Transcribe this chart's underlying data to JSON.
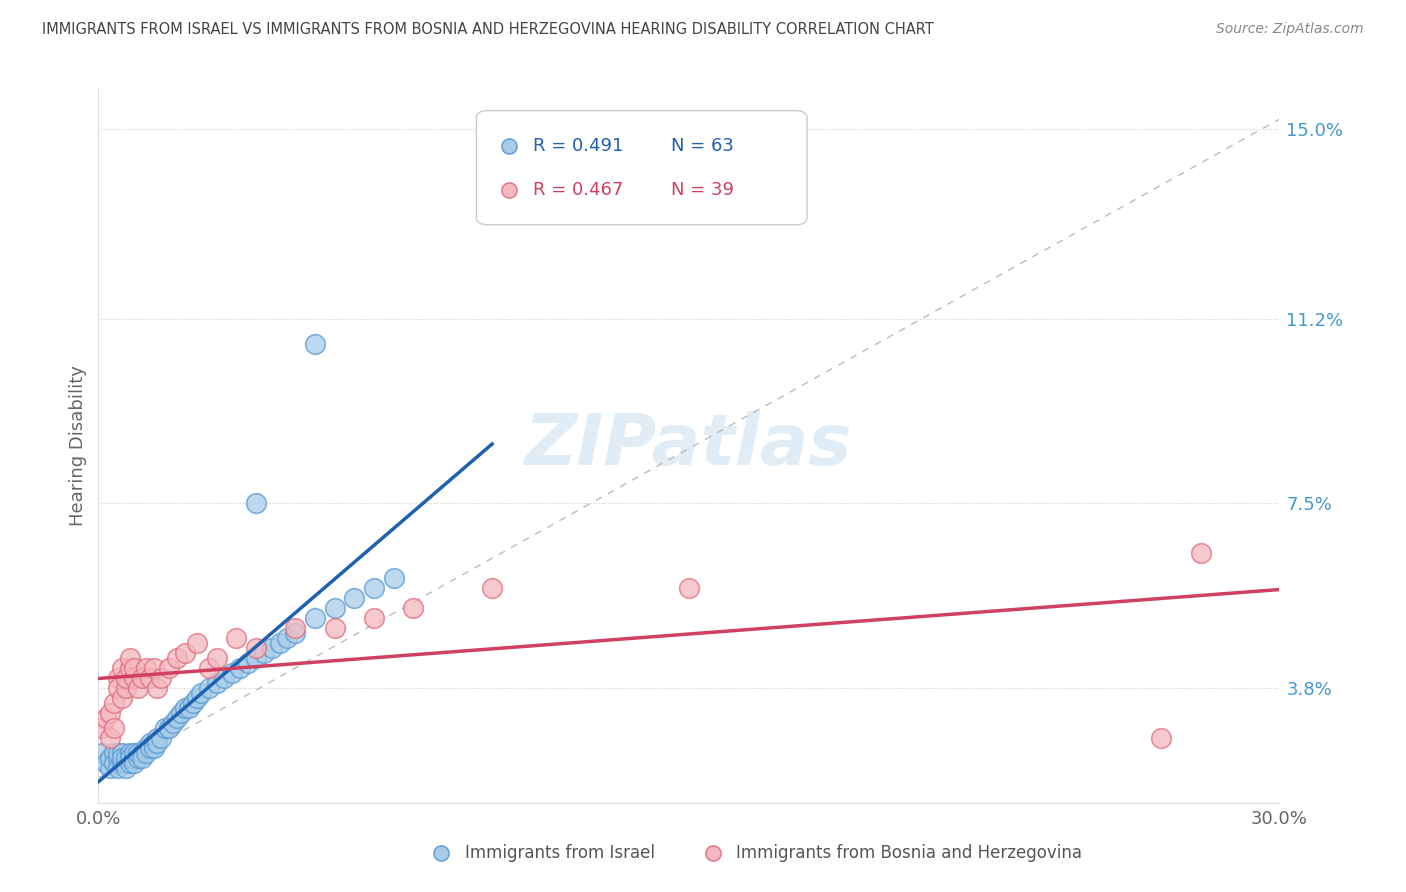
{
  "title": "IMMIGRANTS FROM ISRAEL VS IMMIGRANTS FROM BOSNIA AND HERZEGOVINA HEARING DISABILITY CORRELATION CHART",
  "source": "Source: ZipAtlas.com",
  "ylabel": "Hearing Disability",
  "xlim": [
    0.0,
    0.3
  ],
  "ylim": [
    0.015,
    0.158
  ],
  "yticks_right": [
    0.038,
    0.075,
    0.112,
    0.15
  ],
  "yticklabels_right": [
    "3.8%",
    "7.5%",
    "11.2%",
    "15.0%"
  ],
  "legend_r1": "R = 0.491",
  "legend_n1": "N = 63",
  "legend_r2": "R = 0.467",
  "legend_n2": "N = 39",
  "legend_label1": "Immigrants from Israel",
  "legend_label2": "Immigrants from Bosnia and Herzegovina",
  "blue_color": "#a8cce8",
  "pink_color": "#f4b8c0",
  "blue_edge_color": "#5b9bd5",
  "pink_edge_color": "#e07080",
  "blue_line_color": "#2060b0",
  "pink_line_color": "#d04060",
  "watermark": "ZIPatlas",
  "israel_scatter_x": [
    0.001,
    0.002,
    0.003,
    0.003,
    0.004,
    0.004,
    0.005,
    0.005,
    0.005,
    0.006,
    0.006,
    0.006,
    0.007,
    0.007,
    0.007,
    0.008,
    0.008,
    0.008,
    0.009,
    0.009,
    0.009,
    0.01,
    0.01,
    0.011,
    0.011,
    0.012,
    0.012,
    0.013,
    0.013,
    0.014,
    0.014,
    0.015,
    0.015,
    0.016,
    0.017,
    0.018,
    0.019,
    0.02,
    0.021,
    0.022,
    0.023,
    0.024,
    0.025,
    0.026,
    0.028,
    0.03,
    0.032,
    0.034,
    0.036,
    0.038,
    0.04,
    0.042,
    0.044,
    0.046,
    0.048,
    0.05,
    0.055,
    0.06,
    0.065,
    0.07,
    0.075,
    0.04,
    0.055
  ],
  "israel_scatter_y": [
    0.025,
    0.023,
    0.022,
    0.024,
    0.025,
    0.023,
    0.024,
    0.022,
    0.025,
    0.023,
    0.025,
    0.024,
    0.023,
    0.024,
    0.022,
    0.025,
    0.023,
    0.024,
    0.024,
    0.025,
    0.023,
    0.024,
    0.025,
    0.025,
    0.024,
    0.026,
    0.025,
    0.027,
    0.026,
    0.027,
    0.026,
    0.028,
    0.027,
    0.028,
    0.03,
    0.03,
    0.031,
    0.032,
    0.033,
    0.034,
    0.034,
    0.035,
    0.036,
    0.037,
    0.038,
    0.039,
    0.04,
    0.041,
    0.042,
    0.043,
    0.044,
    0.045,
    0.046,
    0.047,
    0.048,
    0.049,
    0.052,
    0.054,
    0.056,
    0.058,
    0.06,
    0.075,
    0.107
  ],
  "bosnia_scatter_x": [
    0.001,
    0.002,
    0.003,
    0.003,
    0.004,
    0.004,
    0.005,
    0.005,
    0.006,
    0.006,
    0.007,
    0.007,
    0.008,
    0.008,
    0.009,
    0.009,
    0.01,
    0.011,
    0.012,
    0.013,
    0.014,
    0.015,
    0.016,
    0.018,
    0.02,
    0.022,
    0.025,
    0.028,
    0.03,
    0.035,
    0.04,
    0.05,
    0.06,
    0.07,
    0.08,
    0.1,
    0.15,
    0.28,
    0.27
  ],
  "bosnia_scatter_y": [
    0.03,
    0.032,
    0.028,
    0.033,
    0.035,
    0.03,
    0.04,
    0.038,
    0.042,
    0.036,
    0.038,
    0.04,
    0.042,
    0.044,
    0.04,
    0.042,
    0.038,
    0.04,
    0.042,
    0.04,
    0.042,
    0.038,
    0.04,
    0.042,
    0.044,
    0.045,
    0.047,
    0.042,
    0.044,
    0.048,
    0.046,
    0.05,
    0.05,
    0.052,
    0.054,
    0.058,
    0.058,
    0.065,
    0.028
  ]
}
